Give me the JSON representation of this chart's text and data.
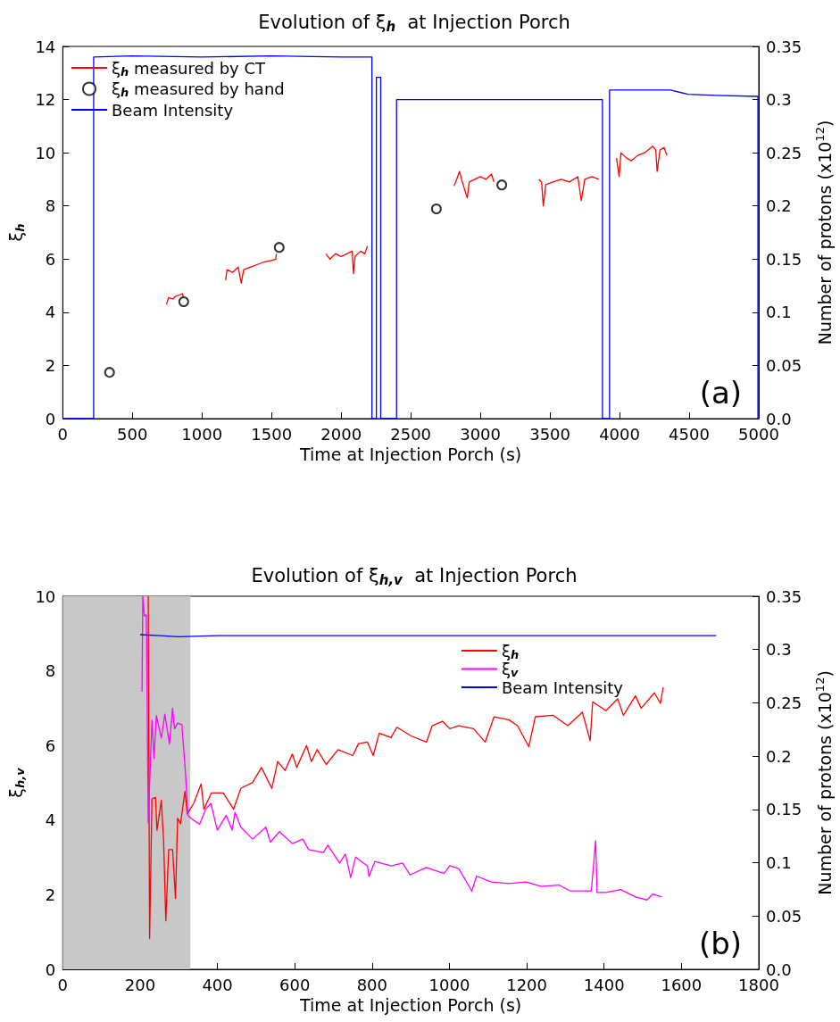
{
  "chart_data": [
    {
      "type": "line",
      "title": "Evolution of ξ$_{h}$  at Injection Porch",
      "xlabel": "Time at Injection Porch (s)",
      "ylabel": "ξ$_{h}$",
      "y2label": "Number of protons (x10$^{12}$)",
      "annotations": [
        "(a)"
      ],
      "xlim": [
        0,
        5000
      ],
      "xticks": [
        0,
        500,
        1000,
        1500,
        2000,
        2500,
        3000,
        3500,
        4000,
        4500,
        5000
      ],
      "ylim": [
        0,
        14
      ],
      "yticks": [
        0,
        2,
        4,
        6,
        8,
        10,
        12,
        14
      ],
      "y2lim": [
        0,
        0.35
      ],
      "y2ticks": [
        {
          "value": 0,
          "label": "0.0"
        },
        0.05,
        0.1,
        0.15,
        0.2,
        0.25,
        0.3,
        0.35
      ],
      "grid": false,
      "legend": "top left",
      "marker": "none",
      "series": [
        {
          "name": "ξ$_{h}$ measured by CT",
          "color": "#ff0000",
          "x": [
            745,
            760,
            790,
            810,
            840,
            860,
            868,
            1000,
            1170,
            1180,
            1220,
            1260,
            1282,
            1300,
            1350,
            1400,
            1450,
            1500,
            1530,
            1535,
            1700,
            1891,
            1920,
            1960,
            2000,
            2040,
            2080,
            2088,
            2100,
            2140,
            2170,
            2189,
            2500,
            2811,
            2830,
            2850,
            2870,
            2906,
            2920,
            2960,
            3000,
            3040,
            3080,
            3097,
            3300,
            3420,
            3440,
            3452,
            3470,
            3520,
            3580,
            3640,
            3700,
            3725,
            3750,
            3800,
            3851,
            3900,
            3978,
            3997,
            4010,
            4050,
            4085,
            4130,
            4180,
            4238,
            4260,
            4270,
            4290,
            4320,
            4340
          ],
          "values": [
            4.3,
            4.55,
            4.5,
            4.6,
            4.65,
            4.7,
            4.55,
            null,
            5.2,
            5.6,
            5.5,
            5.7,
            5.1,
            5.6,
            5.7,
            5.8,
            5.9,
            5.95,
            6.0,
            6.2,
            null,
            6.2,
            6.0,
            6.2,
            6.1,
            6.2,
            6.3,
            5.45,
            6.1,
            6.3,
            6.2,
            6.5,
            null,
            8.75,
            9.0,
            9.3,
            8.9,
            8.3,
            8.9,
            9.0,
            9.1,
            9.0,
            9.2,
            8.9,
            null,
            9.0,
            8.9,
            8.0,
            8.8,
            8.9,
            9.0,
            8.9,
            9.1,
            8.2,
            9.0,
            9.1,
            9.0,
            null,
            9.8,
            9.1,
            10.0,
            9.8,
            9.7,
            9.9,
            10.0,
            10.25,
            10.1,
            9.3,
            10.1,
            10.2,
            9.9
          ]
        },
        {
          "name": "ξ$_{h}$ measured by hand",
          "type": "scatter",
          "marker": "circle",
          "color": "#000000",
          "x": [
            336,
            869,
            1555,
            2684,
            3154
          ],
          "values": [
            1.74,
            4.4,
            6.44,
            7.89,
            8.79
          ]
        },
        {
          "name": "Beam Intensity",
          "axis": "y2",
          "color": "#0000ff",
          "x": [
            0,
            222,
            222,
            500,
            1000,
            1500,
            2000,
            2221,
            2221,
            2253,
            2253,
            2284,
            2284,
            2398,
            2398,
            2800,
            3200,
            3600,
            3877,
            3877,
            3928,
            3928,
            4365,
            4492,
            4700,
            4994,
            4994
          ],
          "values": [
            0,
            0,
            0.34,
            0.341,
            0.34,
            0.341,
            0.34,
            0.34,
            0,
            0,
            0.321,
            0.321,
            0,
            0,
            0.3,
            0.3,
            0.3,
            0.3,
            0.3,
            0,
            0,
            0.309,
            0.309,
            0.305,
            0.304,
            0.303,
            0
          ]
        }
      ]
    },
    {
      "type": "line",
      "title": "Evolution of ξ$_{h,v}$  at Injection Porch",
      "xlabel": "Time at Injection Porch (s)",
      "ylabel": "ξ$_{h,v}$",
      "y2label": "Number of protons (x10$^{12}$)",
      "annotations": [
        "(b)"
      ],
      "xlim": [
        0,
        1800
      ],
      "xticks": [
        0,
        200,
        400,
        600,
        800,
        1000,
        1200,
        1400,
        1600,
        1800
      ],
      "ylim": [
        0,
        10
      ],
      "yticks": [
        0,
        2,
        4,
        6,
        8,
        10
      ],
      "y2lim": [
        0,
        0.35
      ],
      "y2ticks": [
        {
          "value": 0,
          "label": "0.0"
        },
        0.05,
        0.1,
        0.15,
        0.2,
        0.25,
        0.3,
        0.35
      ],
      "grid": false,
      "legend": "top right",
      "marker": "none",
      "bands": [
        {
          "axis": "x",
          "from": 0,
          "to": 330,
          "color": "#c8c8c8"
        }
      ],
      "series": [
        {
          "name": "ξ$_{h}$",
          "color": "#ff0000",
          "x": [
            221,
            224.6,
            230.7,
            239.8,
            243.6,
            255,
            261,
            266.5,
            274,
            284,
            291.6,
            297,
            304.6,
            316,
            322,
            338.8,
            357.9,
            365,
            384.5,
            415,
            441.6,
            460.6,
            491,
            514,
            540.6,
            555.8,
            574.8,
            593.9,
            605,
            630.4,
            643,
            658,
            681.4,
            712,
            750,
            765,
            788,
            803,
            818.4,
            849,
            864,
            902,
            940.5,
            955.5,
            982,
            1001,
            1024,
            1062,
            1092.5,
            1115.4,
            1153.5,
            1176,
            1205.3,
            1222,
            1267.7,
            1306,
            1343.8,
            1364,
            1370.5,
            1404.8,
            1435,
            1450,
            1481,
            1496,
            1530,
            1545.6,
            1553
          ],
          "values": [
            10,
            0.82,
            4.57,
            4.61,
            3.73,
            4.53,
            3.41,
            1.3,
            3.21,
            3.21,
            1.9,
            4.05,
            3.9,
            4.77,
            4.17,
            4.45,
            4.97,
            4.29,
            4.73,
            4.73,
            4.29,
            4.85,
            5.01,
            5.41,
            4.85,
            5.57,
            5.33,
            5.77,
            5.41,
            6.0,
            5.57,
            5.89,
            5.49,
            5.89,
            5.73,
            6.05,
            6.09,
            5.73,
            6.33,
            6.21,
            6.49,
            6.25,
            6.09,
            6.53,
            6.65,
            6.45,
            6.53,
            6.45,
            6.09,
            6.77,
            6.69,
            6.53,
            5.97,
            6.77,
            6.81,
            6.53,
            6.89,
            6.13,
            7.17,
            6.93,
            7.25,
            6.81,
            7.33,
            7.0,
            7.41,
            7.13,
            7.56
          ]
        },
        {
          "name": "ξ$_{v}$",
          "color": "#ff00ff",
          "x": [
            205,
            207,
            211,
            216,
            217,
            221,
            230.7,
            236,
            242,
            255,
            264,
            276,
            284,
            289,
            297,
            308,
            317.5,
            323.6,
            331,
            354,
            369.4,
            383,
            399.7,
            422.6,
            438,
            445.5,
            460.6,
            491,
            525,
            537,
            560,
            594,
            620.6,
            636,
            674,
            685.6,
            715.7,
            731,
            744.6,
            757.5,
            788,
            792,
            807,
            849,
            879,
            898,
            940,
            986,
            1001,
            1024,
            1058,
            1070,
            1108,
            1153,
            1199,
            1237,
            1283,
            1313,
            1367,
            1378,
            1382,
            1405,
            1443,
            1481,
            1511,
            1526,
            1549
          ],
          "values": [
            7.44,
            10,
            9.47,
            9.5,
            8.84,
            3.93,
            6.68,
            5.65,
            6.8,
            6.2,
            6.84,
            6.04,
            7.0,
            6.45,
            6.6,
            6.56,
            5.25,
            4.13,
            4.05,
            3.89,
            4.29,
            4.45,
            3.73,
            4.13,
            3.73,
            4.21,
            3.81,
            3.49,
            3.81,
            3.41,
            3.69,
            3.37,
            3.49,
            3.21,
            3.13,
            3.33,
            2.85,
            3.09,
            2.46,
            3.01,
            2.77,
            2.49,
            2.89,
            2.77,
            2.85,
            2.53,
            2.73,
            2.57,
            2.78,
            2.7,
            2.1,
            2.5,
            2.34,
            2.3,
            2.34,
            2.22,
            2.26,
            2.1,
            2.1,
            3.45,
            2.06,
            2.06,
            2.14,
            1.94,
            1.86,
            2.02,
            1.94
          ]
        },
        {
          "name": "Beam Intensity",
          "axis": "y2",
          "color": "#0000ff",
          "x": [
            200,
            250,
            300,
            400,
            600,
            800,
            1000,
            1200,
            1400,
            1690
          ],
          "values": [
            0.314,
            0.313,
            0.312,
            0.313,
            0.313,
            0.313,
            0.313,
            0.313,
            0.313,
            0.313
          ]
        }
      ]
    }
  ]
}
